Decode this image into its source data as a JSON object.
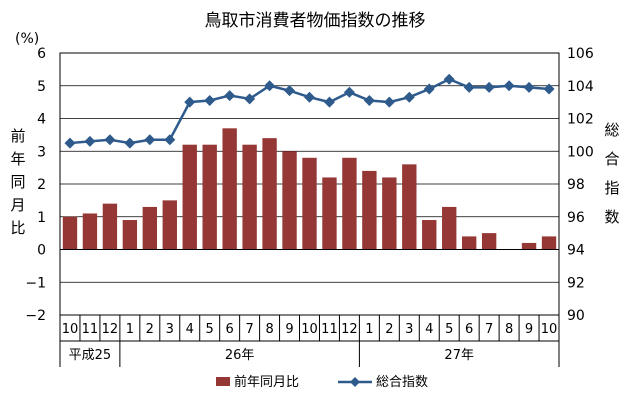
{
  "chart_data": {
    "type": "bar+line",
    "title": "鳥取市消費者物価指数の推移",
    "y_unit": "(%)",
    "ylabel_left": "前年同月比",
    "ylabel_right": "総合指数",
    "ylim_left": [
      -2,
      6
    ],
    "ylim_right": [
      90,
      106
    ],
    "yticks_left": [
      "6",
      "5",
      "4",
      "3",
      "2",
      "1",
      "0",
      "−1",
      "−2"
    ],
    "yticks_right": [
      "106",
      "104",
      "102",
      "100",
      "98",
      "96",
      "94",
      "92",
      "90"
    ],
    "categories": [
      "10",
      "11",
      "12",
      "1",
      "2",
      "3",
      "4",
      "5",
      "6",
      "7",
      "8",
      "9",
      "10",
      "11",
      "12",
      "1",
      "2",
      "3",
      "4",
      "5",
      "6",
      "7",
      "8",
      "9",
      "10"
    ],
    "year_groups": [
      {
        "label": "平成25",
        "start": 0,
        "count": 3
      },
      {
        "label": "26年",
        "start": 3,
        "count": 12
      },
      {
        "label": "27年",
        "start": 15,
        "count": 10
      }
    ],
    "grid": true,
    "legend_position": "bottom",
    "series": [
      {
        "name": "前年同月比",
        "kind": "bar",
        "axis": "left",
        "color": "#953735",
        "values": [
          1.0,
          1.1,
          1.4,
          0.9,
          1.3,
          1.5,
          3.2,
          3.2,
          3.7,
          3.2,
          3.4,
          3.0,
          2.8,
          2.2,
          2.8,
          2.4,
          2.2,
          2.6,
          0.9,
          1.3,
          0.4,
          0.5,
          0.0,
          0.2,
          0.4
        ]
      },
      {
        "name": "総合指数",
        "kind": "line",
        "axis": "right",
        "color": "#2e5a8c",
        "values": [
          100.5,
          100.6,
          100.7,
          100.5,
          100.7,
          100.7,
          103.0,
          103.1,
          103.4,
          103.2,
          104.0,
          103.7,
          103.3,
          103.0,
          103.6,
          103.1,
          103.0,
          103.3,
          103.8,
          104.4,
          103.9,
          103.9,
          104.0,
          103.9,
          103.8
        ]
      }
    ]
  }
}
